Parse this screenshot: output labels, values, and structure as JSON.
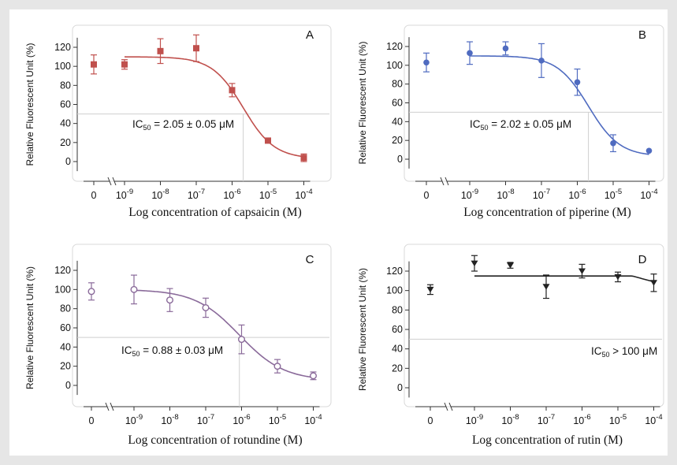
{
  "figure": {
    "panels": [
      {
        "letter": "A",
        "ylabel": "Relative Fluorescent Unit (%)",
        "xlabel": "Log concentration of capsaicin (M)",
        "annotation": "IC50 = 2.05 ± 0.05 μM",
        "color": "#c0504d",
        "marker": "square"
      },
      {
        "letter": "B",
        "ylabel": "Relative Fluorescent Unit (%)",
        "xlabel": "Log concentration of piperine (M)",
        "annotation": "IC50 = 2.02 ± 0.05 μM",
        "color": "#4f6bc0",
        "marker": "circle"
      },
      {
        "letter": "C",
        "ylabel": "Relative Fluorescent Unit (%)",
        "xlabel": "Log concentration of rotundine (M)",
        "annotation": "IC50 = 0.88 ± 0.03 μM",
        "color": "#8a6a9a",
        "marker": "open-circle"
      },
      {
        "letter": "D",
        "ylabel": "Relative Fluorescent Unit (%)",
        "xlabel": "Log concentration of rutin (M)",
        "annotation": "IC50 > 100 μM",
        "color": "#222222",
        "marker": "triangle-down"
      }
    ]
  },
  "chart_data": [
    {
      "type": "scatter",
      "panel": "A",
      "compound": "capsaicin",
      "x_tick_labels": [
        "0",
        "10-9",
        "10-8",
        "10-7",
        "10-6",
        "10-5",
        "10-4"
      ],
      "x_log10": [
        null,
        -9,
        -8,
        -7,
        -6,
        -5,
        -4
      ],
      "y": [
        102,
        102,
        116,
        119,
        75,
        22,
        4
      ],
      "y_error": [
        10,
        5,
        13,
        14,
        7,
        2,
        4
      ],
      "yticks": [
        0,
        20,
        40,
        60,
        80,
        100,
        120
      ],
      "ylim": [
        -10,
        135
      ],
      "reference_line_y": 50,
      "ic50_log10": -5.69,
      "fit": {
        "top": 110,
        "bottom": 3,
        "log_ic50": -5.69,
        "hill": 1.0
      }
    },
    {
      "type": "scatter",
      "panel": "B",
      "compound": "piperine",
      "x_tick_labels": [
        "0",
        "10-9",
        "10-8",
        "10-7",
        "10-6",
        "10-5",
        "10-4"
      ],
      "x_log10": [
        null,
        -9,
        -8,
        -7,
        -6,
        -5,
        -4
      ],
      "y": [
        103,
        113,
        118,
        105,
        82,
        17,
        9
      ],
      "y_error": [
        10,
        12,
        7,
        18,
        14,
        9,
        0
      ],
      "yticks": [
        0,
        20,
        40,
        60,
        80,
        100,
        120
      ],
      "ylim": [
        -10,
        135
      ],
      "reference_line_y": 50,
      "ic50_log10": -5.69,
      "fit": {
        "top": 110,
        "bottom": 3,
        "log_ic50": -5.69,
        "hill": 1.0
      }
    },
    {
      "type": "scatter",
      "panel": "C",
      "compound": "rotundine",
      "x_tick_labels": [
        "0",
        "10-9",
        "10-8",
        "10-7",
        "10-6",
        "10-5",
        "10-4"
      ],
      "x_log10": [
        null,
        -9,
        -8,
        -7,
        -6,
        -5,
        -4
      ],
      "y": [
        98,
        100,
        89,
        81,
        48,
        20,
        10
      ],
      "y_error": [
        9,
        15,
        12,
        10,
        15,
        7,
        4
      ],
      "yticks": [
        0,
        20,
        40,
        60,
        80,
        100,
        120
      ],
      "ylim": [
        -10,
        135
      ],
      "reference_line_y": 50,
      "ic50_log10": -6.06,
      "fit": {
        "top": 100,
        "bottom": 5,
        "log_ic50": -6.06,
        "hill": 0.7
      }
    },
    {
      "type": "scatter",
      "panel": "D",
      "compound": "rutin",
      "x_tick_labels": [
        "0",
        "10-9",
        "10-8",
        "10-7",
        "10-6",
        "10-5",
        "10-4"
      ],
      "x_log10": [
        null,
        -9,
        -8,
        -7,
        -6,
        -5,
        -4
      ],
      "y": [
        101,
        128,
        126,
        104,
        120,
        114,
        108
      ],
      "y_error": [
        5,
        8,
        3,
        12,
        7,
        5,
        9
      ],
      "yticks": [
        0,
        20,
        40,
        60,
        80,
        100,
        120
      ],
      "ylim": [
        -10,
        135
      ],
      "reference_line_y": 50,
      "ic50_log10": null,
      "fit": {
        "top": 115,
        "bottom": 50,
        "log_ic50": -3.0,
        "hill": 1.5
      }
    }
  ]
}
